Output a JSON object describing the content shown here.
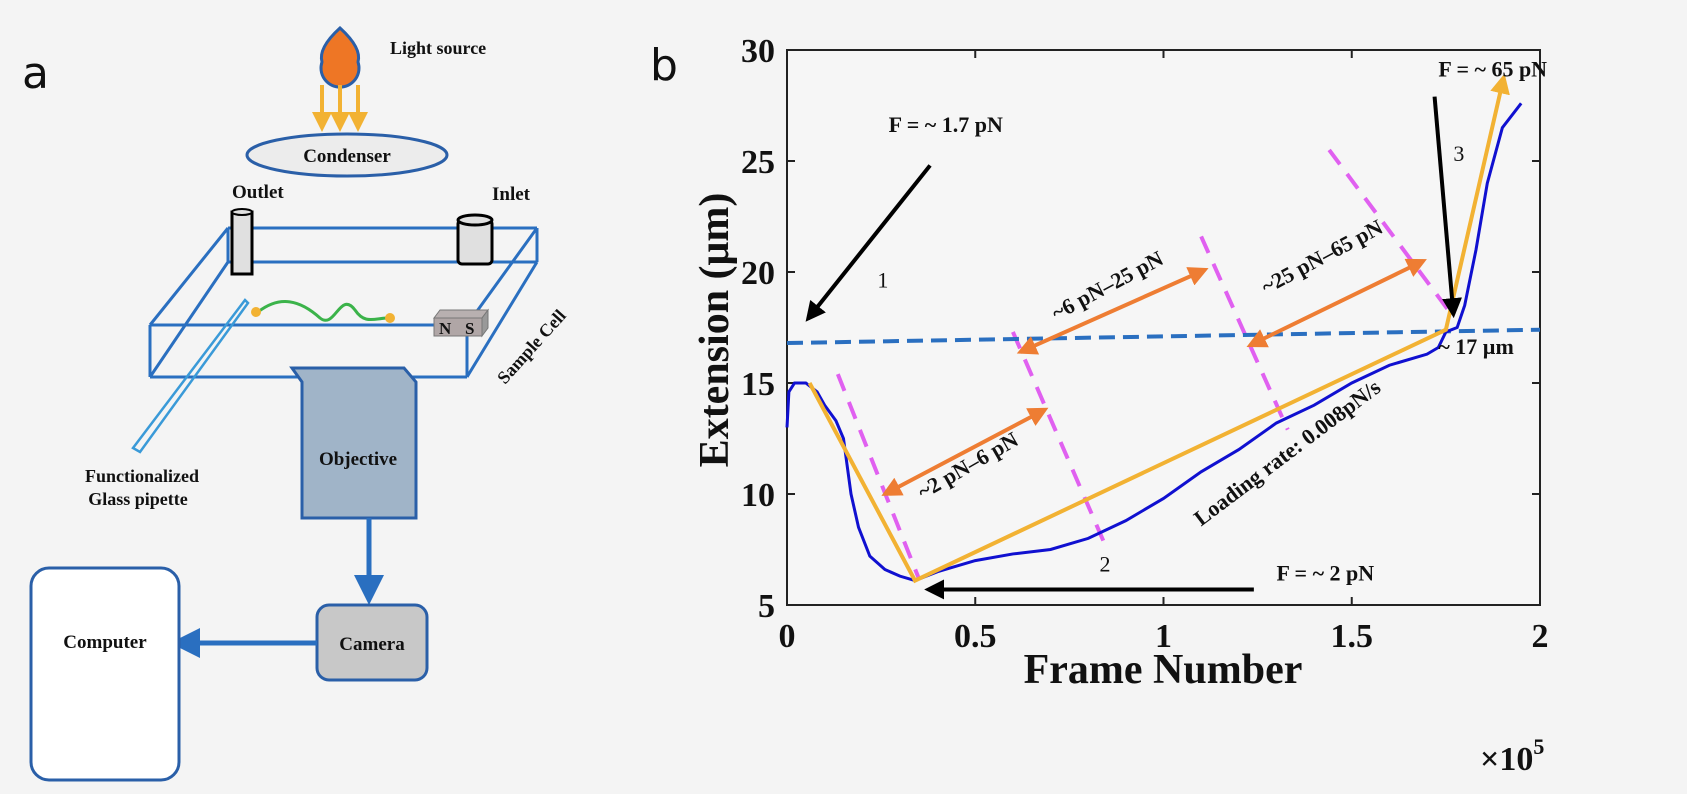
{
  "panel_a": {
    "label": "a",
    "light_source": "Light source",
    "condenser": "Condenser",
    "outlet": "Outlet",
    "inlet": "Inlet",
    "sample_cell": "Sample Cell",
    "magnet_n": "N",
    "magnet_s": "S",
    "pipette_line1": "Functionalized",
    "pipette_line2": "Glass pipette",
    "objective": "Objective",
    "camera": "Camera",
    "computer": "Computer",
    "colors": {
      "light": "#ee7625",
      "arrows": "#f2b233",
      "cell": "#2a6fc0",
      "dna": "#3bb34a",
      "objective": "#a0b4c8",
      "camera": "#c8c8c8"
    }
  },
  "chart_data": {
    "type": "line",
    "panel_label": "b",
    "xlabel": "Frame Number",
    "x_multiplier": "×10",
    "x_multiplier_exp": "5",
    "ylabel": "Extension (μm)",
    "xlim": [
      0,
      2
    ],
    "ylim": [
      5,
      30
    ],
    "xticks": [
      "0",
      "0.5",
      "1",
      "1.5",
      "2"
    ],
    "yticks": [
      "5",
      "10",
      "15",
      "20",
      "25",
      "30"
    ],
    "grid": false,
    "series": [
      {
        "color": "#1010d0",
        "x": [
          0,
          0.005,
          0.02,
          0.05,
          0.08,
          0.1,
          0.13,
          0.15,
          0.17,
          0.19,
          0.22,
          0.26,
          0.3,
          0.34,
          0.4,
          0.5,
          0.6,
          0.7,
          0.8,
          0.9,
          1.0,
          1.1,
          1.2,
          1.3,
          1.4,
          1.5,
          1.6,
          1.7,
          1.73,
          1.75,
          1.78,
          1.8,
          1.83,
          1.86,
          1.9,
          1.95
        ],
        "y": [
          13,
          14.6,
          15,
          15,
          14.6,
          14,
          13.3,
          12.5,
          10,
          8.5,
          7.2,
          6.6,
          6.3,
          6.1,
          6.5,
          7,
          7.3,
          7.5,
          8,
          8.8,
          9.8,
          11,
          12,
          13.2,
          14,
          15,
          15.8,
          16.3,
          16.6,
          17.3,
          17.5,
          18.5,
          21,
          24,
          26.5,
          27.6
        ]
      }
    ],
    "reference_line": {
      "color": "#2a6fc0",
      "x": [
        0,
        2
      ],
      "y": [
        16.8,
        17.4
      ]
    },
    "loading_path": {
      "color": "#f2b233",
      "x": [
        0.06,
        0.34,
        1.75,
        1.9
      ],
      "y": [
        15,
        6.1,
        17.4,
        28.5
      ]
    },
    "boundaries": {
      "color": "#e060f0",
      "segments": [
        [
          [
            0.135,
            15.4
          ],
          [
            0.35,
            6.2
          ]
        ],
        [
          [
            0.6,
            17.3
          ],
          [
            0.84,
            7.9
          ]
        ],
        [
          [
            1.1,
            21.6
          ],
          [
            1.33,
            12.9
          ]
        ],
        [
          [
            1.44,
            25.5
          ],
          [
            1.76,
            18.2
          ]
        ]
      ]
    },
    "ranges": [
      {
        "label": "~2 pN–6 pN",
        "from": [
          0.26,
          10.0
        ],
        "to": [
          0.685,
          13.8
        ],
        "label_at": [
          0.49,
          11.0
        ],
        "angle": -30
      },
      {
        "label": "~6 pN–25 pN",
        "from": [
          0.62,
          16.4
        ],
        "to": [
          1.11,
          20.1
        ],
        "label_at": [
          0.86,
          19.1
        ],
        "angle": -28
      },
      {
        "label": "~25 pN–65 pN",
        "from": [
          1.23,
          16.7
        ],
        "to": [
          1.69,
          20.5
        ],
        "label_at": [
          1.43,
          20.4
        ],
        "angle": -28
      }
    ],
    "range_color": "#ee7d33",
    "annotations": [
      {
        "text": "F = ~ 1.7 pN",
        "at": [
          0.27,
          26.3
        ],
        "arrow_from": [
          0.38,
          24.8
        ],
        "arrow_to": [
          0.056,
          17.9
        ],
        "num": "1",
        "num_at": [
          0.24,
          19.3
        ]
      },
      {
        "text": "F = ~ 2 pN",
        "at": [
          1.3,
          6.1
        ],
        "arrow_from": [
          1.24,
          5.7
        ],
        "arrow_to": [
          0.375,
          5.7
        ],
        "num": "2",
        "num_at": [
          0.83,
          6.5
        ]
      },
      {
        "text": "F = ~ 65 pN",
        "at": [
          1.73,
          28.8
        ],
        "arrow_from": [
          1.72,
          27.9
        ],
        "arrow_to": [
          1.77,
          18.1
        ],
        "num": "3",
        "num_at": [
          1.77,
          25.0
        ]
      }
    ],
    "extension_label": {
      "text": "~ 17 µm",
      "at": [
        1.73,
        16.3
      ]
    },
    "loading_rate": {
      "text": "Loading rate: 0.008pN/s",
      "at": [
        1.34,
        11.6
      ],
      "angle": -37
    }
  }
}
